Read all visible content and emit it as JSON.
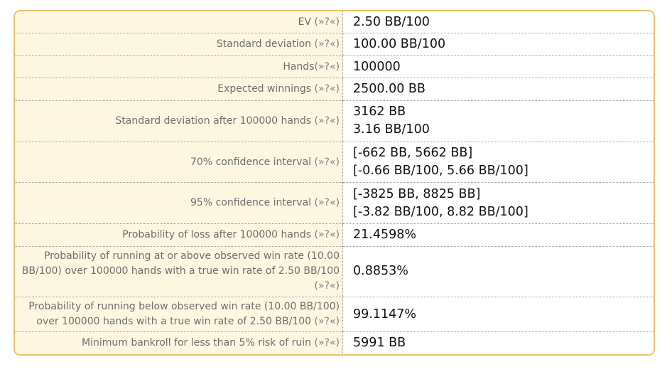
{
  "results": {
    "rows": [
      {
        "label": "EV",
        "gap": " ",
        "help": "(»?«)",
        "values": [
          "2.50 BB/100"
        ]
      },
      {
        "label": "Standard deviation",
        "gap": " ",
        "help": "(»?«)",
        "values": [
          "100.00 BB/100"
        ]
      },
      {
        "label": "Hands",
        "gap": "",
        "help": "(»?«)",
        "values": [
          "100000"
        ]
      },
      {
        "label": "Expected winnings",
        "gap": " ",
        "help": "(»?«)",
        "values": [
          "2500.00 BB"
        ]
      },
      {
        "label": "Standard deviation after 100000 hands",
        "gap": " ",
        "help": "(»?«)",
        "values": [
          "3162 BB",
          "3.16 BB/100"
        ]
      },
      {
        "label": "70% confidence interval",
        "gap": " ",
        "help": "(»?«)",
        "values": [
          "[-662 BB, 5662 BB]",
          "[-0.66 BB/100, 5.66 BB/100]"
        ]
      },
      {
        "label": "95% confidence interval",
        "gap": " ",
        "help": "(»?«)",
        "values": [
          "[-3825 BB, 8825 BB]",
          "[-3.82 BB/100, 8.82 BB/100]"
        ]
      },
      {
        "label": "Probability of loss after 100000 hands",
        "gap": " ",
        "help": "(»?«)",
        "values": [
          "21.4598%"
        ]
      },
      {
        "label": "Probability of running at or above observed win rate (10.00 BB/100) over 100000 hands with a true win rate of 2.50 BB/100",
        "gap": " ",
        "help": "(»?«)",
        "values": [
          "0.8853%"
        ]
      },
      {
        "label": "Probability of running below observed win rate (10.00 BB/100) over 100000 hands with a true win rate of 2.50 BB/100",
        "gap": " ",
        "help": "(»?«)",
        "values": [
          "99.1147%"
        ]
      },
      {
        "label": "Minimum bankroll for less than 5% risk of ruin",
        "gap": " ",
        "help": "(»?«)",
        "values": [
          "5991 BB"
        ]
      }
    ]
  },
  "colors": {
    "border": "#e8c46a",
    "label_background": "#fdf7e2",
    "label_text": "#6e6e6e",
    "value_text": "#111111",
    "help_text": "#7d7d7d"
  }
}
